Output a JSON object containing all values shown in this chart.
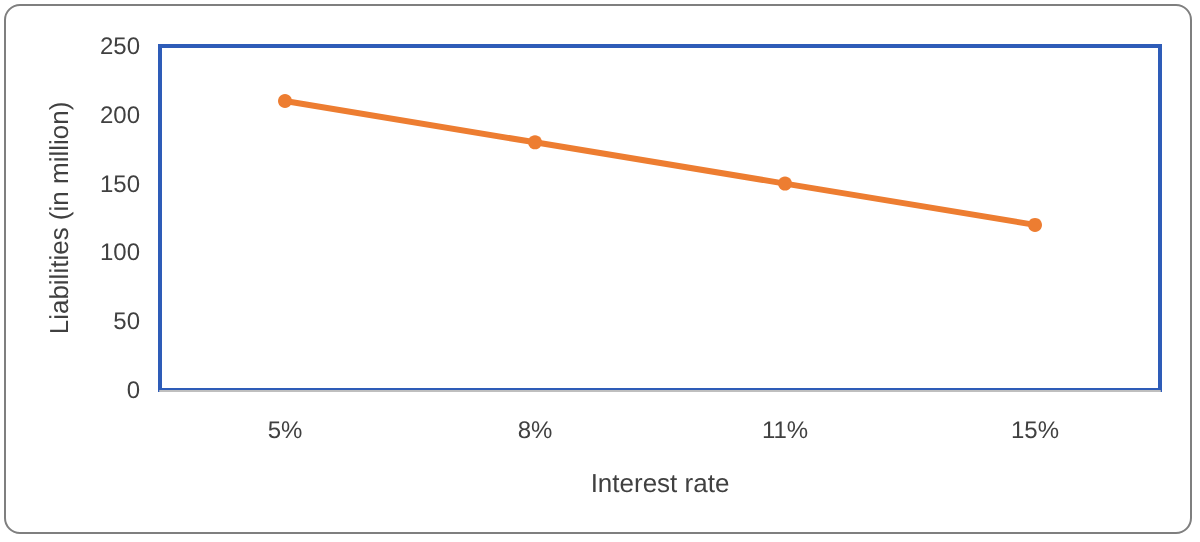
{
  "chart_data": {
    "type": "line",
    "xlabel": "Interest rate",
    "ylabel": "Liabilities (in million)",
    "categories": [
      "5%",
      "8%",
      "11%",
      "15%"
    ],
    "series": [
      {
        "color": "#ed7d31",
        "values": [
          210,
          180,
          150,
          120
        ]
      }
    ],
    "ylim": [
      0,
      250
    ],
    "yticks": [
      0,
      50,
      100,
      150,
      200,
      250
    ],
    "grid": false,
    "marker": "circle",
    "line_style": "solid"
  }
}
